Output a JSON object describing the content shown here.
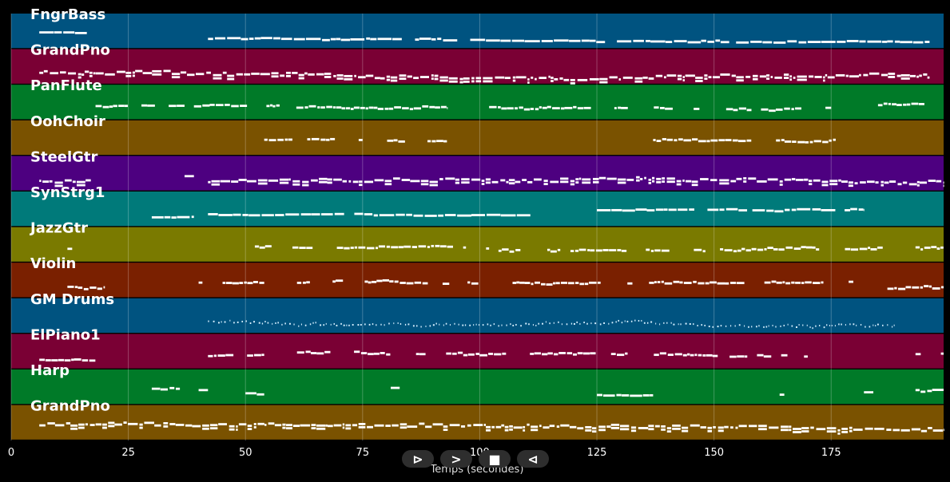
{
  "chart_data": {
    "type": "piano-roll",
    "xlabel": "Temps (secondes)",
    "xlim": [
      0,
      199
    ],
    "x_ticks": [
      0,
      25,
      50,
      75,
      100,
      125,
      150,
      175
    ],
    "grid": true,
    "tracks": [
      {
        "name": "FngrBass",
        "color": "#005380",
        "segments": [
          [
            6,
            18
          ],
          [
            42,
            196
          ]
        ],
        "density": "sparse"
      },
      {
        "name": "GrandPno",
        "color": "#7a0034",
        "segments": [
          [
            6,
            196
          ]
        ],
        "density": "dense"
      },
      {
        "name": "PanFlute",
        "color": "#007a28",
        "segments": [
          [
            18,
            37
          ],
          [
            39,
            93
          ],
          [
            102,
            175
          ],
          [
            185,
            195
          ]
        ],
        "density": "phrases"
      },
      {
        "name": "OohChoir",
        "color": "#7a5200",
        "segments": [
          [
            54,
            93
          ],
          [
            137,
            176
          ]
        ],
        "density": "phrases"
      },
      {
        "name": "SteelGtr",
        "color": "#4d0080",
        "segments": [
          [
            6,
            17
          ],
          [
            37,
            39
          ],
          [
            42,
            199
          ]
        ],
        "density": "dense"
      },
      {
        "name": "SynStrg1",
        "color": "#007a7a",
        "segments": [
          [
            30,
            39
          ],
          [
            42,
            113
          ],
          [
            125,
            182
          ]
        ],
        "density": "sparse"
      },
      {
        "name": "JazzGtr",
        "color": "#7a7a00",
        "segments": [
          [
            12,
            18
          ],
          [
            52,
            102
          ],
          [
            104,
            186
          ],
          [
            193,
            199
          ]
        ],
        "density": "phrases"
      },
      {
        "name": "Violin",
        "color": "#7a2000",
        "segments": [
          [
            12,
            20
          ],
          [
            40,
            54
          ],
          [
            61,
            103
          ],
          [
            107,
            180
          ],
          [
            187,
            199
          ]
        ],
        "density": "phrases"
      },
      {
        "name": "GM Drums",
        "color": "#005380",
        "segments": [
          [
            42,
            189
          ]
        ],
        "density": "hits"
      },
      {
        "name": "ElPiano1",
        "color": "#7a0034",
        "segments": [
          [
            6,
            18
          ],
          [
            42,
            54
          ],
          [
            61,
            170
          ],
          [
            193,
            199
          ]
        ],
        "density": "phrases"
      },
      {
        "name": "Harp",
        "color": "#007a28",
        "segments": [
          [
            30,
            36
          ],
          [
            40,
            42
          ],
          [
            50,
            54
          ],
          [
            81,
            83
          ],
          [
            125,
            137
          ],
          [
            164,
            165
          ],
          [
            182,
            184
          ],
          [
            193,
            199
          ]
        ],
        "density": "sparse"
      },
      {
        "name": "GrandPno",
        "color": "#7a5200",
        "segments": [
          [
            6,
            199
          ]
        ],
        "density": "dense"
      }
    ]
  },
  "controls": [
    {
      "name": "play",
      "label": "⊳"
    },
    {
      "name": "next",
      "label": ">"
    },
    {
      "name": "stop",
      "label": "■"
    },
    {
      "name": "back",
      "label": "⊲"
    }
  ]
}
